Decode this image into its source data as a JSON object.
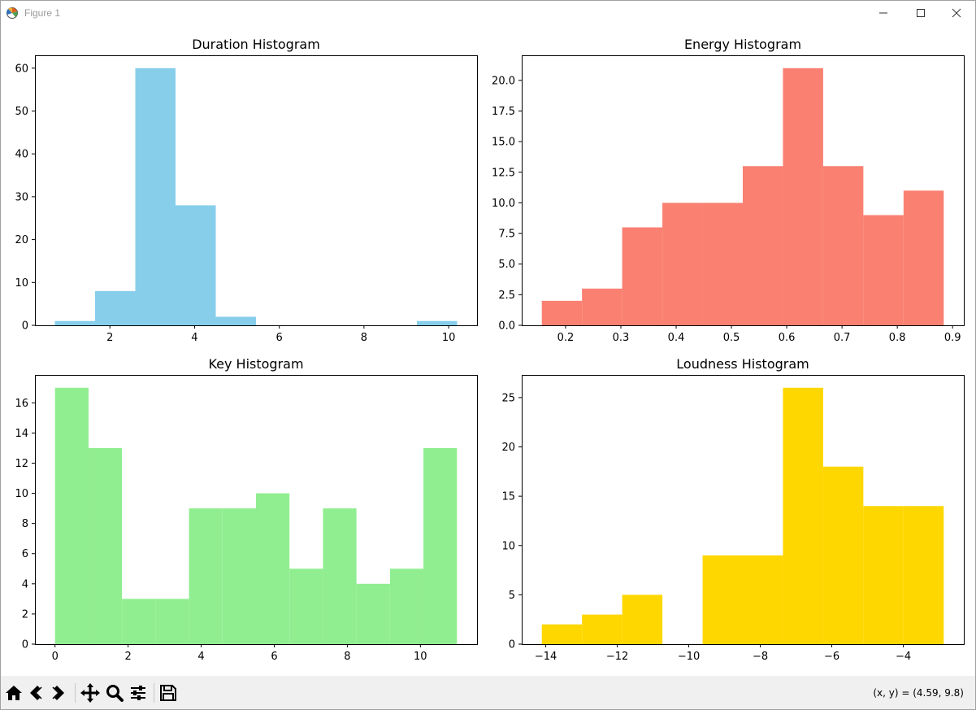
{
  "window": {
    "title": "Figure 1",
    "icons": [
      "figure-app-icon",
      "minimize-icon",
      "maximize-icon",
      "close-icon"
    ]
  },
  "toolbar": {
    "tools": [
      {
        "name": "home-icon"
      },
      {
        "name": "back-icon"
      },
      {
        "name": "forward-icon"
      },
      {
        "name": "pan-icon"
      },
      {
        "name": "zoom-icon"
      },
      {
        "name": "configure-subplots-icon"
      },
      {
        "name": "save-icon"
      }
    ],
    "coords": "(x, y) = (4.59, 9.8)"
  },
  "chart_data": [
    {
      "type": "bar",
      "title": "Duration Histogram",
      "color": "#87ceeb",
      "bin_edges": [
        0.7,
        1.65,
        2.6,
        3.55,
        4.5,
        5.45,
        6.4,
        7.35,
        8.3,
        9.25,
        10.2
      ],
      "values": [
        1,
        8,
        60,
        28,
        2,
        0,
        0,
        0,
        0,
        1
      ],
      "xlim": [
        0.23,
        10.67
      ],
      "ylim": [
        0,
        63
      ],
      "xticks": [
        2,
        4,
        6,
        8,
        10
      ],
      "xtick_labels": [
        "2",
        "4",
        "6",
        "8",
        "10"
      ],
      "yticks": [
        0,
        10,
        20,
        30,
        40,
        50,
        60
      ],
      "ytick_labels": [
        "0",
        "10",
        "20",
        "30",
        "40",
        "50",
        "60"
      ]
    },
    {
      "type": "bar",
      "title": "Energy Histogram",
      "color": "#fa8072",
      "bin_edges": [
        0.157,
        0.2297,
        0.3024,
        0.3751,
        0.4478,
        0.5205,
        0.5932,
        0.6659,
        0.7386,
        0.8113,
        0.884
      ],
      "values": [
        2,
        3,
        8,
        10,
        10,
        13,
        21,
        13,
        9,
        11
      ],
      "xlim": [
        0.1207,
        0.9203
      ],
      "ylim": [
        0,
        22.05
      ],
      "xticks": [
        0.2,
        0.3,
        0.4,
        0.5,
        0.6,
        0.7,
        0.8,
        0.9
      ],
      "xtick_labels": [
        "0.2",
        "0.3",
        "0.4",
        "0.5",
        "0.6",
        "0.7",
        "0.8",
        "0.9"
      ],
      "yticks": [
        0,
        2.5,
        5,
        7.5,
        10,
        12.5,
        15,
        17.5,
        20
      ],
      "ytick_labels": [
        "0.0",
        "2.5",
        "5.0",
        "7.5",
        "10.0",
        "12.5",
        "15.0",
        "17.5",
        "20.0"
      ]
    },
    {
      "type": "bar",
      "title": "Key Histogram",
      "color": "#90ee90",
      "bin_edges": [
        0,
        0.917,
        1.833,
        2.75,
        3.667,
        4.583,
        5.5,
        6.417,
        7.333,
        8.25,
        9.167,
        10.083,
        11
      ],
      "values": [
        17,
        13,
        3,
        3,
        9,
        9,
        10,
        5,
        9,
        4,
        5,
        13
      ],
      "xlim": [
        -0.55,
        11.55
      ],
      "ylim": [
        0,
        17.85
      ],
      "xticks": [
        0,
        2,
        4,
        6,
        8,
        10
      ],
      "xtick_labels": [
        "0",
        "2",
        "4",
        "6",
        "8",
        "10"
      ],
      "yticks": [
        0,
        2,
        4,
        6,
        8,
        10,
        12,
        14,
        16
      ],
      "ytick_labels": [
        "0",
        "2",
        "4",
        "6",
        "8",
        "10",
        "12",
        "14",
        "16"
      ]
    },
    {
      "type": "bar",
      "title": "Loudness Histogram",
      "color": "#ffd700",
      "bin_edges": [
        -14.11,
        -12.986,
        -11.862,
        -10.738,
        -9.614,
        -8.49,
        -7.366,
        -6.242,
        -5.118,
        -3.994,
        -2.87
      ],
      "values": [
        2,
        3,
        5,
        0,
        9,
        9,
        26,
        18,
        14,
        14
      ],
      "xlim": [
        -14.672,
        -2.308
      ],
      "ylim": [
        0,
        27.3
      ],
      "xticks": [
        -14,
        -12,
        -10,
        -8,
        -6,
        -4
      ],
      "xtick_labels": [
        "−14",
        "−12",
        "−10",
        "−8",
        "−6",
        "−4"
      ],
      "yticks": [
        0,
        5,
        10,
        15,
        20,
        25
      ],
      "ytick_labels": [
        "0",
        "5",
        "10",
        "15",
        "20",
        "25"
      ]
    }
  ]
}
